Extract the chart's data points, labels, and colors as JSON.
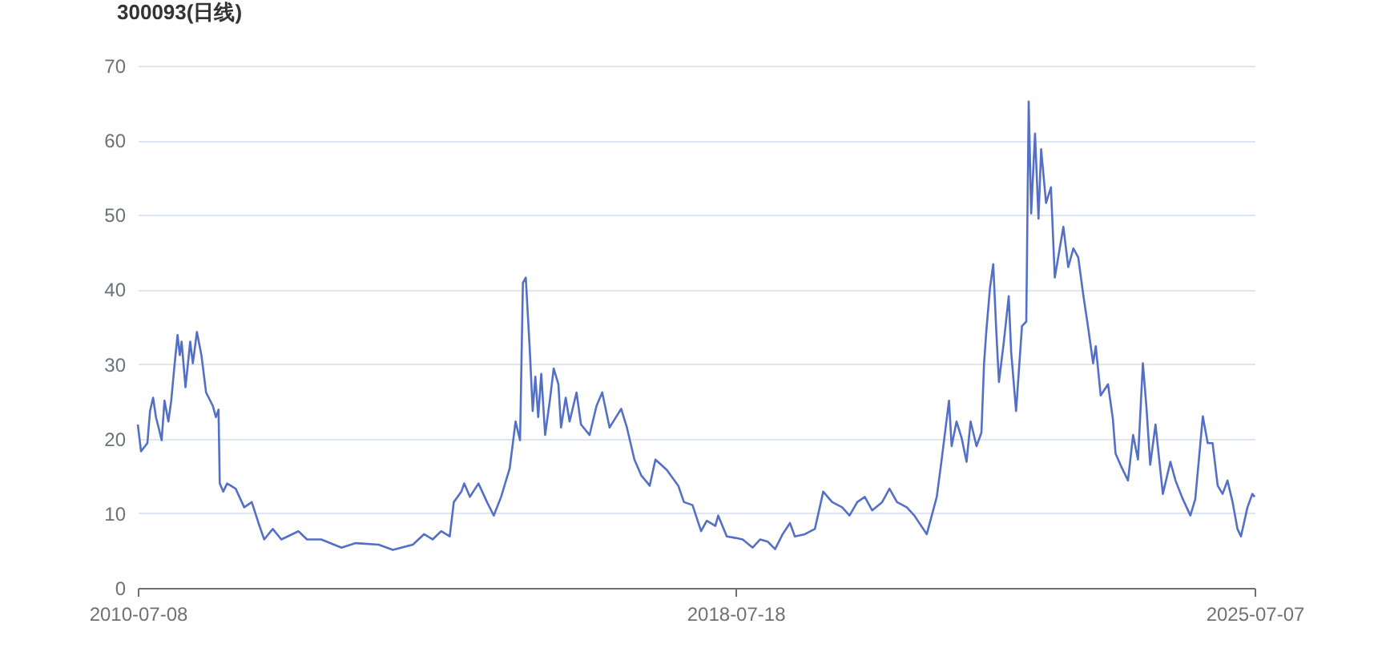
{
  "chart_data": {
    "type": "line",
    "title": "300093(日线)",
    "x": [
      "2010-07-08",
      "2010-07-24",
      "2010-08-24",
      "2010-09-06",
      "2010-09-21",
      "2010-10-05",
      "2010-10-18",
      "2010-11-02",
      "2010-11-16",
      "2010-12-05",
      "2010-12-19",
      "2011-01-05",
      "2011-01-19",
      "2011-01-30",
      "2011-02-08",
      "2011-02-27",
      "2011-03-22",
      "2011-04-04",
      "2011-04-24",
      "2011-05-16",
      "2011-06-08",
      "2011-07-11",
      "2011-07-26",
      "2011-08-08",
      "2011-08-14",
      "2011-08-31",
      "2011-09-19",
      "2011-10-31",
      "2011-12-12",
      "2012-01-18",
      "2012-02-20",
      "2012-03-19",
      "2012-04-30",
      "2012-06-11",
      "2012-09-03",
      "2012-10-15",
      "2012-12-24",
      "2013-04-02",
      "2013-06-11",
      "2013-10-01",
      "2013-12-10",
      "2014-03-18",
      "2014-05-12",
      "2014-06-23",
      "2014-08-04",
      "2014-09-15",
      "2014-10-05",
      "2014-11-11",
      "2014-11-25",
      "2014-12-23",
      "2015-02-03",
      "2015-03-17",
      "2015-04-19",
      "2015-05-25",
      "2015-07-06",
      "2015-08-04",
      "2015-08-26",
      "2015-09-09",
      "2015-09-23",
      "2015-10-12",
      "2015-10-27",
      "2015-11-09",
      "2015-11-23",
      "2015-12-08",
      "2015-12-27",
      "2016-01-19",
      "2016-02-07",
      "2016-03-01",
      "2016-03-14",
      "2016-04-06",
      "2016-04-25",
      "2016-05-29",
      "2016-06-20",
      "2016-08-01",
      "2016-09-04",
      "2016-10-02",
      "2016-11-07",
      "2017-01-03",
      "2017-01-31",
      "2017-03-09",
      "2017-04-11",
      "2017-05-23",
      "2017-06-20",
      "2017-08-15",
      "2017-10-10",
      "2017-11-07",
      "2017-12-19",
      "2018-01-30",
      "2018-02-27",
      "2018-04-10",
      "2018-04-24",
      "2018-06-05",
      "2018-07-18",
      "2018-08-22",
      "2018-10-10",
      "2018-11-16",
      "2018-12-23",
      "2019-01-28",
      "2019-03-06",
      "2019-04-11",
      "2019-05-05",
      "2019-06-23",
      "2019-08-11",
      "2019-09-04",
      "2019-09-21",
      "2019-11-04",
      "2019-12-23",
      "2020-01-28",
      "2020-03-06",
      "2020-04-12",
      "2020-05-18",
      "2020-07-06",
      "2020-08-11",
      "2020-09-17",
      "2020-11-04",
      "2020-12-11",
      "2021-02-10",
      "2021-03-31",
      "2021-04-24",
      "2021-05-30",
      "2021-06-12",
      "2021-07-06",
      "2021-07-31",
      "2021-08-24",
      "2021-09-13",
      "2021-10-12",
      "2021-11-05",
      "2021-11-18",
      "2021-11-29",
      "2021-12-17",
      "2022-01-02",
      "2022-01-17",
      "2022-01-30",
      "2022-02-23",
      "2022-03-19",
      "2022-03-31",
      "2022-04-24",
      "2022-05-23",
      "2022-06-13",
      "2022-06-25",
      "2022-07-07",
      "2022-07-26",
      "2022-08-12",
      "2022-08-25",
      "2022-09-18",
      "2022-10-12",
      "2022-10-31",
      "2022-12-12",
      "2023-01-05",
      "2023-01-30",
      "2023-02-23",
      "2023-03-19",
      "2023-04-13",
      "2023-05-07",
      "2023-05-20",
      "2023-06-13",
      "2023-07-19",
      "2023-08-12",
      "2023-08-25",
      "2023-09-18",
      "2023-10-25",
      "2023-11-19",
      "2023-12-13",
      "2024-01-06",
      "2024-01-23",
      "2024-02-11",
      "2024-03-08",
      "2024-04-13",
      "2024-05-20",
      "2024-06-14",
      "2024-07-20",
      "2024-08-26",
      "2024-09-19",
      "2024-10-14",
      "2024-10-26",
      "2024-11-19",
      "2024-12-13",
      "2025-01-07",
      "2025-01-31",
      "2025-02-24",
      "2025-03-21",
      "2025-04-14",
      "2025-05-01",
      "2025-06-02",
      "2025-06-26",
      "2025-07-07"
    ],
    "series": [
      {
        "color": "#5470c6",
        "values": [
          21.9,
          18.3,
          19.4,
          23.7,
          25.5,
          22.9,
          21.5,
          19.8,
          25.1,
          22.3,
          25.1,
          30.1,
          33.9,
          31.2,
          33.0,
          26.9,
          33.0,
          30.1,
          34.3,
          31.2,
          26.2,
          24.4,
          22.9,
          23.9,
          14.0,
          12.9,
          14.0,
          13.3,
          10.8,
          11.5,
          8.7,
          6.5,
          7.9,
          6.5,
          7.6,
          6.5,
          6.5,
          5.4,
          6.0,
          5.8,
          5.1,
          5.8,
          7.2,
          6.5,
          7.6,
          6.9,
          11.5,
          12.9,
          14.0,
          12.2,
          14.0,
          11.5,
          9.7,
          12.2,
          16.0,
          22.3,
          19.8,
          40.9,
          41.6,
          32.3,
          23.7,
          28.3,
          22.9,
          28.7,
          20.5,
          25.1,
          29.4,
          27.3,
          21.5,
          25.5,
          22.3,
          26.2,
          21.9,
          20.5,
          24.4,
          26.2,
          21.5,
          24.0,
          21.5,
          17.2,
          15.1,
          13.7,
          17.2,
          15.8,
          13.7,
          11.5,
          11.1,
          7.6,
          9.0,
          8.3,
          9.7,
          6.9,
          6.7,
          6.5,
          5.4,
          6.5,
          6.2,
          5.2,
          7.2,
          8.7,
          6.9,
          7.2,
          7.9,
          10.8,
          12.9,
          11.5,
          10.8,
          9.7,
          11.5,
          12.2,
          10.4,
          11.5,
          13.3,
          11.5,
          10.8,
          9.7,
          7.2,
          12.2,
          17.2,
          25.1,
          19.0,
          22.3,
          20.1,
          16.9,
          22.3,
          19.0,
          20.8,
          30.1,
          34.4,
          40.2,
          43.4,
          34.4,
          27.6,
          33.0,
          39.1,
          31.6,
          23.7,
          35.1,
          35.7,
          65.2,
          50.2,
          60.9,
          49.5,
          58.8,
          51.6,
          53.7,
          41.6,
          48.4,
          43.0,
          45.5,
          44.3,
          39.4,
          34.8,
          30.1,
          32.4,
          25.8,
          27.3,
          22.6,
          18.0,
          16.5,
          14.4,
          20.5,
          17.2,
          30.1,
          24.4,
          16.5,
          21.9,
          12.6,
          16.9,
          14.4,
          11.9,
          9.7,
          11.9,
          19.4,
          23.0,
          19.4,
          19.4,
          13.7,
          12.6,
          14.4,
          11.5,
          7.9,
          6.9,
          10.8,
          12.6,
          12.2
        ]
      }
    ],
    "xlim": [
      "2010-07-08",
      "2025-07-07"
    ],
    "xticks": [
      {
        "value": "2010-07-08",
        "label": "2010-07-08"
      },
      {
        "value": "2018-07-18",
        "label": "2018-07-18"
      },
      {
        "value": "2025-07-07",
        "label": "2025-07-07"
      }
    ],
    "ylim": [
      0,
      70
    ],
    "yticks": [
      0,
      10,
      20,
      30,
      40,
      50,
      60,
      70
    ],
    "grid": "y",
    "marker": "none",
    "line_style": "solid"
  }
}
